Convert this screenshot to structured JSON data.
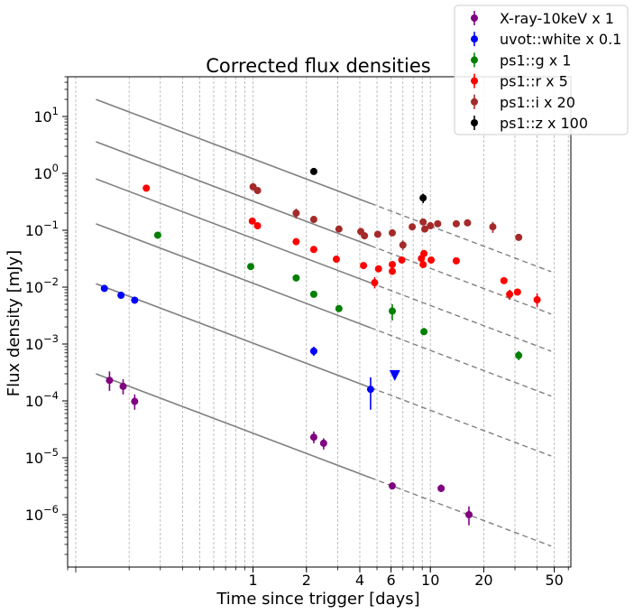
{
  "chart_data": {
    "type": "scatter",
    "title": "Corrected flux densities",
    "xlabel": "Time since trigger [days]",
    "ylabel": "Flux density [mJy]",
    "xscale": "log",
    "yscale": "log",
    "xlim": [
      0.09,
      62
    ],
    "ylim": [
      1.2e-07,
      50
    ],
    "grid": "vertical dashed",
    "legend_position": "top-right",
    "x_ticks": [
      {
        "value": 1,
        "label": "1"
      },
      {
        "value": 2,
        "label": "2"
      },
      {
        "value": 4,
        "label": "4"
      },
      {
        "value": 6,
        "label": "6"
      },
      {
        "value": 10,
        "label": "10"
      },
      {
        "value": 20,
        "label": "20"
      },
      {
        "value": 50,
        "label": "50"
      }
    ],
    "y_ticks": [
      {
        "value": 1e-06,
        "base": "10",
        "exp": "−6"
      },
      {
        "value": 1e-05,
        "base": "10",
        "exp": "−5"
      },
      {
        "value": 0.0001,
        "base": "10",
        "exp": "−4"
      },
      {
        "value": 0.001,
        "base": "10",
        "exp": "−3"
      },
      {
        "value": 0.01,
        "base": "10",
        "exp": "−2"
      },
      {
        "value": 0.1,
        "base": "10",
        "exp": "−1"
      },
      {
        "value": 1,
        "base": "10",
        "exp": "0"
      },
      {
        "value": 10,
        "base": "10",
        "exp": "1"
      }
    ],
    "model_lines": {
      "color": "#808080",
      "x_start": 0.13,
      "x_solid_end": 4.6,
      "x_end": 48,
      "slope": -1.18,
      "y_at_start": [
        0.0003,
        0.0115,
        0.13,
        0.8,
        3.6,
        20
      ]
    },
    "series": [
      {
        "name": "X-ray-10keV x 1",
        "color": "#800080",
        "points": [
          {
            "x": 0.155,
            "y": 0.00023,
            "lo": 0.00015,
            "hi": 0.00033
          },
          {
            "x": 0.185,
            "y": 0.00018,
            "lo": 0.00013,
            "hi": 0.00024
          },
          {
            "x": 0.215,
            "y": 9.8e-05,
            "lo": 7e-05,
            "hi": 0.00013
          },
          {
            "x": 2.2,
            "y": 2.3e-05,
            "lo": 1.8e-05,
            "hi": 2.9e-05
          },
          {
            "x": 2.5,
            "y": 1.8e-05,
            "lo": 1.4e-05,
            "hi": 2.2e-05
          },
          {
            "x": 6.1,
            "y": 3.2e-06
          },
          {
            "x": 11.5,
            "y": 2.9e-06,
            "lo": 2.5e-06,
            "hi": 3.4e-06
          },
          {
            "x": 16.5,
            "y": 1e-06,
            "lo": 6.5e-07,
            "hi": 1.4e-06
          }
        ]
      },
      {
        "name": "uvot::white x 0.1",
        "color": "#0000ff",
        "points": [
          {
            "x": 0.145,
            "y": 0.0095
          },
          {
            "x": 0.18,
            "y": 0.0072
          },
          {
            "x": 0.215,
            "y": 0.0059
          },
          {
            "x": 2.2,
            "y": 0.00075,
            "lo": 0.00062,
            "hi": 0.0009
          },
          {
            "x": 4.6,
            "y": 0.00016,
            "lo": 7e-05,
            "hi": 0.00026
          }
        ],
        "upper_limits": [
          {
            "x": 6.3,
            "y": 0.00028
          }
        ]
      },
      {
        "name": "ps1::g x 1",
        "color": "#008000",
        "points": [
          {
            "x": 0.29,
            "y": 0.082
          },
          {
            "x": 0.97,
            "y": 0.023
          },
          {
            "x": 1.75,
            "y": 0.0145
          },
          {
            "x": 2.2,
            "y": 0.0075
          },
          {
            "x": 3.05,
            "y": 0.0042
          },
          {
            "x": 6.1,
            "y": 0.0038,
            "lo": 0.0026,
            "hi": 0.005
          },
          {
            "x": 9.2,
            "y": 0.00165
          },
          {
            "x": 31.5,
            "y": 0.00063,
            "lo": 0.00052,
            "hi": 0.00075
          }
        ]
      },
      {
        "name": "ps1::r x 5",
        "color": "#ff0000",
        "points": [
          {
            "x": 0.25,
            "y": 0.55
          },
          {
            "x": 0.99,
            "y": 0.145
          },
          {
            "x": 1.06,
            "y": 0.12
          },
          {
            "x": 1.75,
            "y": 0.063
          },
          {
            "x": 2.2,
            "y": 0.046
          },
          {
            "x": 2.95,
            "y": 0.031
          },
          {
            "x": 4.2,
            "y": 0.024
          },
          {
            "x": 4.85,
            "y": 0.012,
            "lo": 0.0095,
            "hi": 0.015
          },
          {
            "x": 5.1,
            "y": 0.021
          },
          {
            "x": 6.1,
            "y": 0.019
          },
          {
            "x": 6.1,
            "y": 0.025
          },
          {
            "x": 6.9,
            "y": 0.03
          },
          {
            "x": 8.9,
            "y": 0.032
          },
          {
            "x": 9.1,
            "y": 0.025
          },
          {
            "x": 9.2,
            "y": 0.039
          },
          {
            "x": 10.1,
            "y": 0.03
          },
          {
            "x": 14.0,
            "y": 0.029
          },
          {
            "x": 26.0,
            "y": 0.013
          },
          {
            "x": 28.0,
            "y": 0.0075,
            "lo": 0.006,
            "hi": 0.009
          },
          {
            "x": 31.0,
            "y": 0.0082
          },
          {
            "x": 40.0,
            "y": 0.006,
            "lo": 0.0045,
            "hi": 0.0078
          }
        ]
      },
      {
        "name": "ps1::i x 20",
        "color": "#a52a2a",
        "points": [
          {
            "x": 1.0,
            "y": 0.58
          },
          {
            "x": 1.06,
            "y": 0.5
          },
          {
            "x": 1.75,
            "y": 0.2,
            "lo": 0.16,
            "hi": 0.24
          },
          {
            "x": 2.2,
            "y": 0.155
          },
          {
            "x": 3.05,
            "y": 0.105
          },
          {
            "x": 4.05,
            "y": 0.095
          },
          {
            "x": 4.25,
            "y": 0.08
          },
          {
            "x": 5.05,
            "y": 0.085
          },
          {
            "x": 6.1,
            "y": 0.09
          },
          {
            "x": 7.0,
            "y": 0.055,
            "lo": 0.045,
            "hi": 0.066
          },
          {
            "x": 7.9,
            "y": 0.115
          },
          {
            "x": 9.1,
            "y": 0.14
          },
          {
            "x": 9.3,
            "y": 0.105
          },
          {
            "x": 10.0,
            "y": 0.12
          },
          {
            "x": 11.0,
            "y": 0.13
          },
          {
            "x": 14.0,
            "y": 0.13
          },
          {
            "x": 16.2,
            "y": 0.135
          },
          {
            "x": 22.5,
            "y": 0.115,
            "lo": 0.09,
            "hi": 0.14
          },
          {
            "x": 31.5,
            "y": 0.075
          }
        ]
      },
      {
        "name": "ps1::z x 100",
        "color": "#000000",
        "points": [
          {
            "x": 2.2,
            "y": 1.08
          },
          {
            "x": 9.1,
            "y": 0.37,
            "lo": 0.3,
            "hi": 0.44
          }
        ]
      }
    ]
  }
}
